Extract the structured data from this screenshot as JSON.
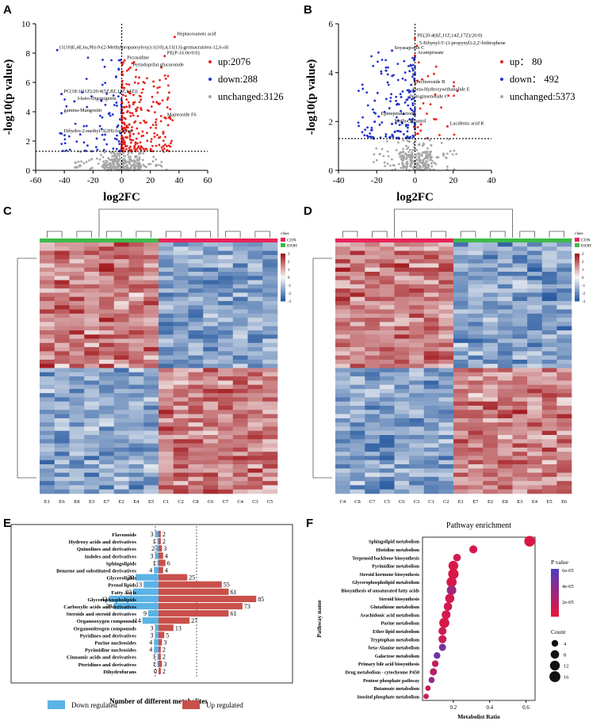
{
  "panels": {
    "A": {
      "label": "A",
      "chart_data": {
        "type": "scatter",
        "xlabel": "log2FC",
        "ylabel": "-log10(p value)",
        "xlim": [
          -60,
          60
        ],
        "ylim": [
          0,
          10
        ],
        "xticks": [
          "-60",
          "-40",
          "-20",
          "0",
          "20",
          "40",
          "60"
        ],
        "yticks": [
          "0",
          "2",
          "4",
          "6",
          "8",
          "10"
        ],
        "threshold_y": 1.3,
        "threshold_x": 0,
        "legend": [
          {
            "text": "up:2076",
            "color": "#e8241d"
          },
          {
            "text": "down:288",
            "color": "#2233cc"
          },
          {
            "text": "unchanged:3126",
            "color": "#a6a6a6"
          }
        ],
        "annotations": [
          {
            "text": "Heptacosanoic acid",
            "x": 37,
            "y": 9.1
          },
          {
            "text": "(1(10)E,4E,6a,9b)-9-(2-Methylpropanoyloxy)-1(10),4,11(13)-germacratrien-12,6-oli",
            "x": -45,
            "y": 8.2
          },
          {
            "text": "PE(P-16:0e/0:0)",
            "x": 30,
            "y": 7.8
          },
          {
            "text": "Picrasidine",
            "x": 2,
            "y": 7.5
          },
          {
            "text": "Perindoprilat glucuronide",
            "x": 6,
            "y": 7.0
          },
          {
            "text": "PC(18:1(11Z)/20:4(5Z,8Z,11Z,14Z))",
            "x": -42,
            "y": 5.2
          },
          {
            "text": "3-keto-Digoxigenin",
            "x": -33,
            "y": 4.7
          },
          {
            "text": "gamma-Mangostin",
            "x": -42,
            "y": 3.9
          },
          {
            "text": "Majoroside F6",
            "x": 30,
            "y": 3.6
          },
          {
            "text": "Dihydro-2-methyl-3(2H)-furanone",
            "x": -42,
            "y": 2.5
          }
        ]
      }
    },
    "B": {
      "label": "B",
      "chart_data": {
        "type": "scatter",
        "xlabel": "log2FC",
        "ylabel": "-log10(p value)",
        "xlim": [
          -40,
          40
        ],
        "ylim": [
          0,
          6
        ],
        "xticks": [
          "-40",
          "-20",
          "0",
          "20",
          "40"
        ],
        "yticks": [
          "0",
          "2",
          "4",
          "6"
        ],
        "threshold_y": 1.3,
        "threshold_x": 0,
        "legend": [
          {
            "text": "up： 80",
            "color": "#e8241d"
          },
          {
            "text": "down： 492",
            "color": "#2233cc"
          },
          {
            "text": "unchanged:5373",
            "color": "#a6a6a6"
          }
        ],
        "annotations": [
          {
            "text": "PE(20:4(8Z,11Z,14Z,17Z)/20:0)",
            "x": 0,
            "y": 5.4
          },
          {
            "text": "5-Ethynyl-5'-(1-propynyl)-2,2'-bithiophene",
            "x": 1,
            "y": 5.1
          },
          {
            "text": "Soyasaponin C",
            "x": -12,
            "y": 4.9
          },
          {
            "text": "Acamprosate",
            "x": 0,
            "y": 4.7
          },
          {
            "text": "Corchoroside B",
            "x": -2,
            "y": 3.5
          },
          {
            "text": "4beta-Hydroxywithanolide E",
            "x": -3,
            "y": 3.2
          },
          {
            "text": "Notoginsenoside C",
            "x": -4,
            "y": 2.9
          },
          {
            "text": "Epinepetalactone",
            "x": -19,
            "y": 2.2
          },
          {
            "text": "Methocarbamol",
            "x": -12,
            "y": 1.9
          },
          {
            "text": "Lucidenic acid K",
            "x": 17,
            "y": 1.8
          }
        ]
      }
    },
    "C": {
      "label": "C",
      "chart_data": {
        "type": "heatmap",
        "legend_title": "class",
        "groups": [
          {
            "name": "CON",
            "color": "#e8245a"
          },
          {
            "name": "EtOH",
            "color": "#3dba4a"
          }
        ],
        "columns": [
          "E1",
          "E6",
          "E8",
          "E3",
          "E7",
          "E2",
          "E4",
          "E5",
          "C1",
          "C2",
          "C8",
          "C6",
          "C7",
          "C4",
          "C3",
          "C5"
        ],
        "column_groups": [
          "EtOH",
          "EtOH",
          "EtOH",
          "EtOH",
          "EtOH",
          "EtOH",
          "EtOH",
          "EtOH",
          "CON",
          "CON",
          "CON",
          "CON",
          "CON",
          "CON",
          "CON",
          "CON"
        ],
        "scale": [
          "3",
          "2",
          "1",
          "0",
          "-1",
          "-2",
          "-3"
        ]
      }
    },
    "D": {
      "label": "D",
      "chart_data": {
        "type": "heatmap",
        "legend_title": "class",
        "groups": [
          {
            "name": "CON",
            "color": "#e8245a"
          },
          {
            "name": "EtOH",
            "color": "#3dba4a"
          }
        ],
        "columns": [
          "C4",
          "C8",
          "C7",
          "C5",
          "C6",
          "C3",
          "C1",
          "C2",
          "E1",
          "E7",
          "E2",
          "E8",
          "E3",
          "E4",
          "E5",
          "E6"
        ],
        "column_groups": [
          "CON",
          "CON",
          "CON",
          "CON",
          "CON",
          "CON",
          "CON",
          "CON",
          "EtOH",
          "EtOH",
          "EtOH",
          "EtOH",
          "EtOH",
          "EtOH",
          "EtOH",
          "EtOH"
        ],
        "scale": [
          "3",
          "2",
          "1",
          "0",
          "-1",
          "-2",
          "-3"
        ]
      }
    },
    "E": {
      "label": "E",
      "chart_data": {
        "type": "bar",
        "xlabel": "Number of different metabolites",
        "categories": [
          "Flavonoids",
          "Hydroxy acids and derivatives",
          "Quinolines and derivatives",
          "Indoles and derivatives",
          "Sphingolipids",
          "Benzene and substituted derivatives",
          "Glycerolipids",
          "Prenol lipids",
          "Fatty Acyls",
          "Glycerophospholipids",
          "Carboxylic acids and derivatives",
          "Steroids and steroid derivatives",
          "Organooxygen compounds",
          "Organonitrogen compounds",
          "Pyridines and derivatives",
          "Purine nucleosides",
          "Pyrimidine nucleosides",
          "Cinnamic acids and derivatives",
          "Pteridines and derivatives",
          "Dihydrofurans"
        ],
        "series": [
          {
            "name": "Down regulated",
            "color": "#5ab3e6",
            "values": [
              3,
              1,
              2,
              3,
              1,
              4,
              20,
              13,
              22,
              43,
              39,
              9,
              14,
              3,
              3,
              4,
              4,
              1,
              1,
              0
            ]
          },
          {
            "name": "Up regulated",
            "color": "#c9504a",
            "values": [
              2,
              2,
              3,
              4,
              6,
              4,
              25,
              55,
              61,
              85,
              73,
              61,
              27,
              13,
              5,
              3,
              2,
              2,
              3,
              2
            ]
          }
        ],
        "value_labels_down": [
          "3",
          "1",
          "2",
          "3",
          "1",
          "4",
          "20",
          "13",
          "22",
          "43",
          "39",
          "9",
          "14",
          "3",
          "3",
          "4",
          "4",
          "1",
          "1",
          "0"
        ],
        "value_labels_up": [
          "2",
          "2",
          "3",
          "4",
          "6",
          "4",
          "25",
          "55",
          "61",
          "85",
          "73",
          "61",
          "27",
          "13",
          "5",
          "3",
          "2",
          "2",
          "3",
          "2"
        ],
        "legend": [
          "Down regulated",
          "Up regulated"
        ]
      }
    },
    "F": {
      "label": "F",
      "chart_data": {
        "type": "scatter",
        "title": "Pathway enrichment",
        "xlabel": "Metabolist Ratio",
        "ylabel": "Pathway name",
        "xlim": [
          0.03,
          0.65
        ],
        "xticks": [
          {
            "v": 0.2,
            "t": "0.2"
          },
          {
            "v": 0.4,
            "t": "0.4"
          },
          {
            "v": 0.6,
            "t": "0.6"
          }
        ],
        "categories": [
          "Sphingolipid metabolism",
          "Histidine metabolism",
          "Terpenoid backbone biosynthesis",
          "Pyrimidine metabolism",
          "Steroid hormone biosynthesis",
          "Glycerophospholipid metabolism",
          "Biosynthesis of unsaturated fatty acids",
          "Steroid biosynthesis",
          "Glutathione metabolism",
          "Arachidonic acid metabolism",
          "Purine metabolism",
          "Ether lipid metabolism",
          "Tryptophan metabolism",
          "beta-Alanine metabolism",
          "Galactose metabolism",
          "Primary bile acid biosynthesis",
          "Drug metabolism - cytochrome P450",
          "Pentose phosphate pathway",
          "Butanoate metabolism",
          "Inositol phosphate metabolism"
        ],
        "ratio": [
          0.62,
          0.31,
          0.22,
          0.2,
          0.2,
          0.19,
          0.19,
          0.18,
          0.17,
          0.16,
          0.15,
          0.14,
          0.14,
          0.14,
          0.11,
          0.1,
          0.09,
          0.08,
          0.06,
          0.05
        ],
        "count": [
          15,
          7,
          6,
          12,
          14,
          13,
          11,
          10,
          8,
          9,
          13,
          7,
          7,
          5,
          4,
          4,
          5,
          3,
          2,
          2
        ],
        "pvalue": [
          5e-06,
          8e-06,
          1e-05,
          6e-06,
          5e-06,
          6e-06,
          3e-05,
          8e-06,
          1e-05,
          9e-06,
          6e-06,
          1e-05,
          1.2e-05,
          4.5e-05,
          5e-05,
          1.5e-05,
          2e-05,
          3.5e-05,
          1.2e-05,
          1e-05
        ],
        "legend_pvalue_title": "P value",
        "legend_pvalue_ticks": [
          "6e-05",
          "4e-05",
          "2e-05"
        ],
        "legend_count_title": "Count",
        "legend_count_ticks": [
          "4",
          "8",
          "12",
          "16"
        ]
      }
    }
  }
}
